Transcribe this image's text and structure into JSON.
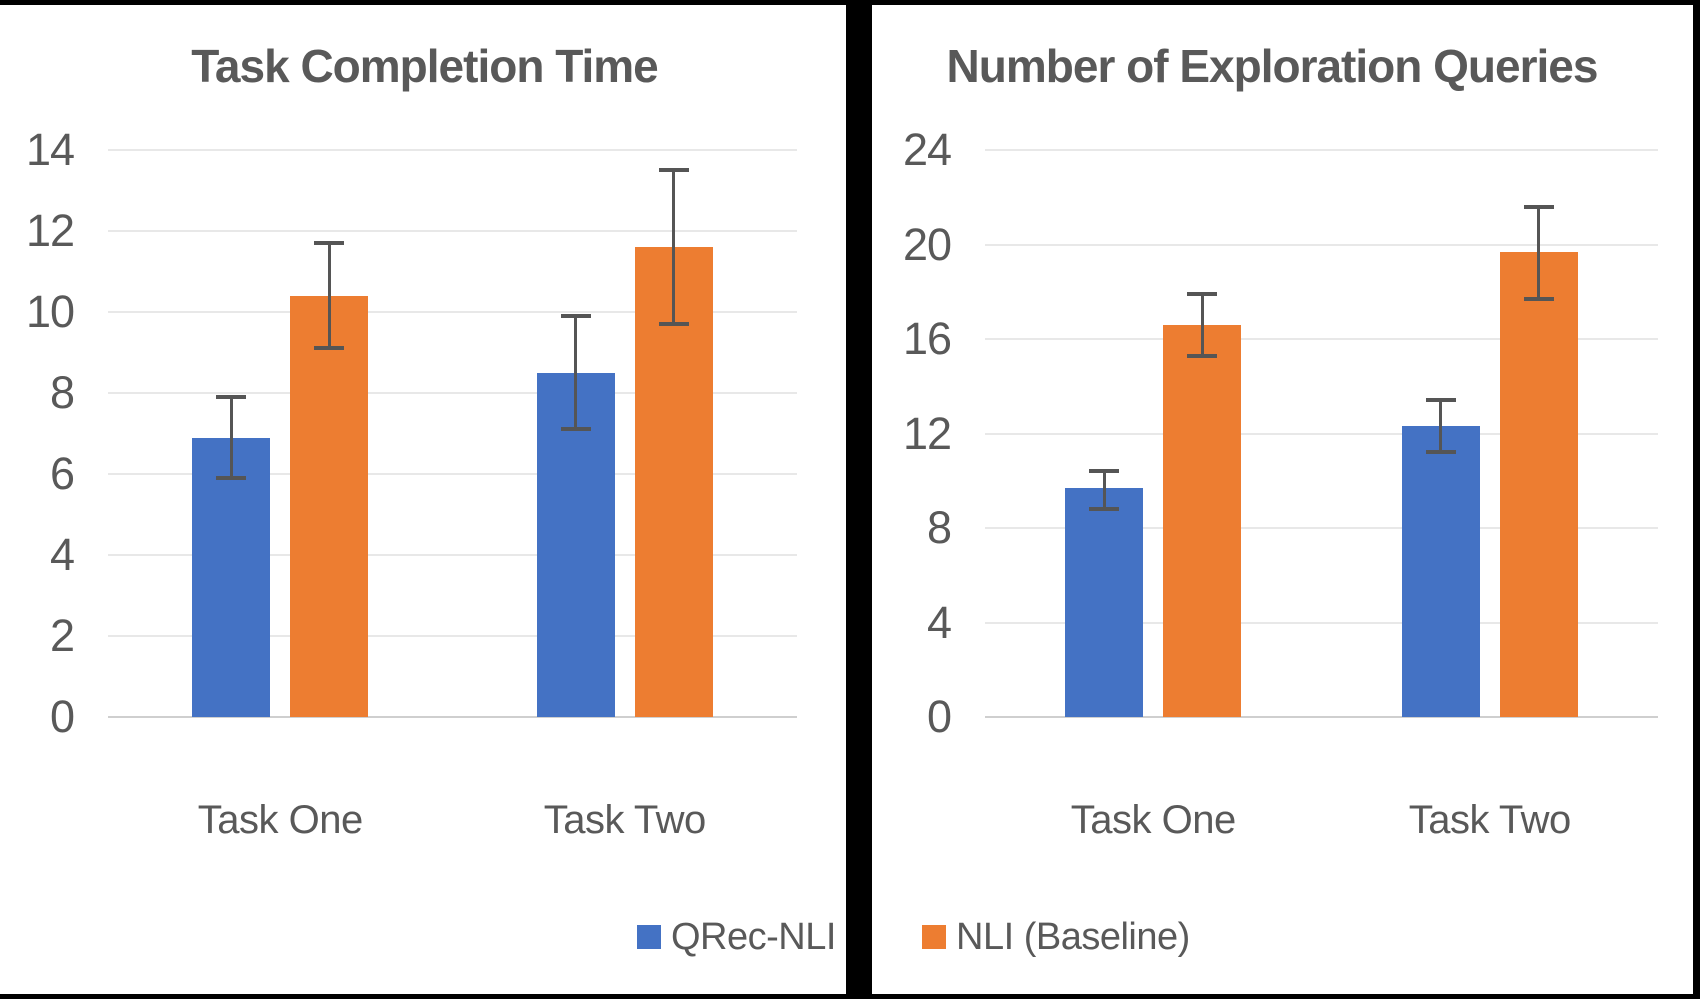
{
  "figure": {
    "background": "#000000",
    "panel_background": "#FFFFFF"
  },
  "legend": {
    "items": [
      {
        "label": "QRec-NLI",
        "color": "#4472C4"
      },
      {
        "label": "NLI (Baseline)",
        "color": "#ED7D31"
      }
    ],
    "position": "bottom-center-spanning-panels"
  },
  "colors": {
    "series_blue": "#4472C4",
    "series_orange": "#ED7D31",
    "text": "#595959",
    "gridline": "#E8E8E8",
    "zero_axis": "#CFCFCF",
    "error_bar": "#555555",
    "frame": "#000000"
  },
  "chart_data": [
    {
      "type": "bar",
      "title": "Task Completion Time",
      "categories": [
        "Task One",
        "Task Two"
      ],
      "series": [
        {
          "name": "QRec-NLI",
          "color": "#4472C4",
          "values": [
            6.9,
            8.5
          ],
          "error_low": [
            5.9,
            7.1
          ],
          "error_high": [
            7.9,
            9.9
          ]
        },
        {
          "name": "NLI (Baseline)",
          "color": "#ED7D31",
          "values": [
            10.4,
            11.6
          ],
          "error_low": [
            9.1,
            9.7
          ],
          "error_high": [
            11.7,
            13.5
          ]
        }
      ],
      "xlabel": "",
      "ylabel": "",
      "ylim": [
        0,
        14
      ],
      "yticks": [
        0,
        2,
        4,
        6,
        8,
        10,
        12,
        14
      ],
      "grid": true,
      "error_bars": true,
      "legend_position": "bottom"
    },
    {
      "type": "bar",
      "title": "Number of Exploration Queries",
      "categories": [
        "Task One",
        "Task Two"
      ],
      "series": [
        {
          "name": "QRec-NLI",
          "color": "#4472C4",
          "values": [
            9.7,
            12.3
          ],
          "error_low": [
            8.8,
            11.2
          ],
          "error_high": [
            10.4,
            13.4
          ]
        },
        {
          "name": "NLI (Baseline)",
          "color": "#ED7D31",
          "values": [
            16.6,
            19.7
          ],
          "error_low": [
            15.3,
            17.7
          ],
          "error_high": [
            17.9,
            21.6
          ]
        }
      ],
      "xlabel": "",
      "ylabel": "",
      "ylim": [
        0,
        24
      ],
      "yticks": [
        0,
        4,
        8,
        12,
        16,
        20,
        24
      ],
      "grid": true,
      "error_bars": true,
      "legend_position": "bottom"
    }
  ]
}
